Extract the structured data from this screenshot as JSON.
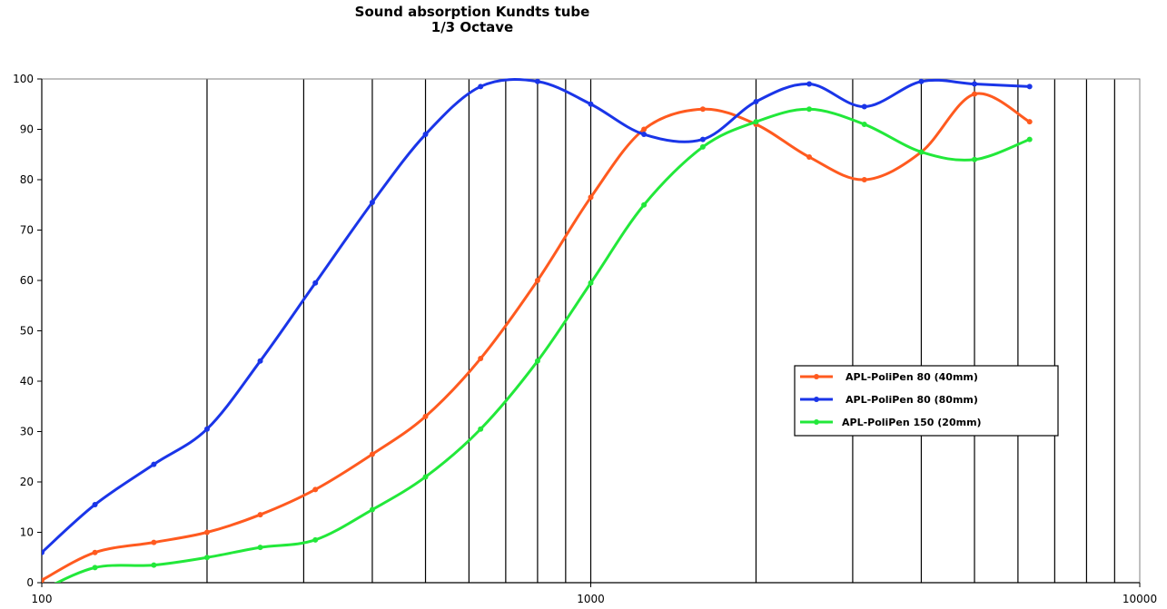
{
  "chart_data": {
    "type": "line",
    "title": "Sound absorption Kundts tube",
    "subtitle": "1/3 Octave",
    "xlabel": "",
    "ylabel": "",
    "xscale": "log",
    "xlim": [
      100,
      10000
    ],
    "ylim": [
      0,
      100
    ],
    "grid": "vertical",
    "legend_position": "right",
    "x_tick_labels": [
      "100",
      "1000",
      "10000"
    ],
    "y_tick_labels": [
      "0",
      "10",
      "20",
      "30",
      "40",
      "50",
      "60",
      "70",
      "80",
      "90",
      "100"
    ],
    "x": [
      100,
      125,
      160,
      200,
      250,
      315,
      400,
      500,
      630,
      800,
      1000,
      1250,
      1600,
      2000,
      2500,
      3150,
      4000,
      5000,
      6300
    ],
    "series": [
      {
        "name": "APL-PoliPen 80 (40mm)",
        "color": "#ff5a1f",
        "values": [
          0.5,
          6,
          8,
          10,
          13.5,
          18.5,
          25.5,
          33,
          44.5,
          60,
          76.5,
          90,
          94,
          91,
          84.5,
          80,
          85.5,
          97,
          91.5
        ]
      },
      {
        "name": "APL-PoliPen 80 (80mm)",
        "color": "#1a35e8",
        "values": [
          6,
          15.5,
          23.5,
          30.5,
          44,
          59.5,
          75.5,
          89,
          98.5,
          99.5,
          95,
          89,
          88,
          95.5,
          99,
          94.5,
          99.5,
          99,
          98.5
        ]
      },
      {
        "name": "APL-PoliPen 150 (20mm)",
        "color": "#22e83a",
        "values": [
          -1.5,
          3,
          3.5,
          5,
          7,
          8.5,
          14.5,
          21,
          30.5,
          44,
          59.5,
          75,
          86.5,
          91.5,
          94,
          91,
          85.5,
          84,
          88
        ]
      }
    ]
  }
}
